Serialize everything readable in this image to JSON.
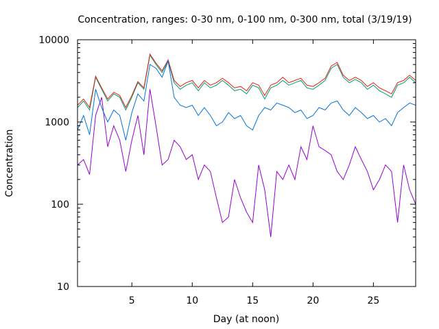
{
  "chart_data": {
    "type": "line",
    "title": "Concentration, ranges: 0-30 nm, 0-100 nm, 0-300 nm, total (3/19/19)",
    "xlabel": "Day (at noon)",
    "ylabel": "Concentration",
    "xlim": [
      0.5,
      28.5
    ],
    "ylim": [
      10,
      10000
    ],
    "yscale": "log",
    "x_ticks": [
      5,
      10,
      15,
      20,
      25
    ],
    "y_ticks": [
      10,
      100,
      1000,
      10000
    ],
    "x_tick_labels": [
      "5",
      "10",
      "15",
      "20",
      "25"
    ],
    "y_tick_labels": [
      "10",
      "100",
      "1000",
      "10000"
    ],
    "grid": false,
    "legend": "none",
    "series": [
      {
        "color": "#9400d3",
        "x": [
          0.5,
          1.0,
          1.5,
          2.0,
          2.5,
          3.0,
          3.5,
          4.0,
          4.5,
          5.0,
          5.5,
          6.0,
          6.5,
          7.0,
          7.5,
          8.0,
          8.5,
          9.0,
          9.5,
          10.0,
          10.5,
          11.0,
          11.5,
          12.0,
          12.5,
          13.0,
          13.5,
          14.0,
          14.5,
          15.0,
          15.5,
          16.0,
          16.5,
          17.0,
          17.5,
          18.0,
          18.5,
          19.0,
          19.5,
          20.0,
          20.5,
          21.0,
          21.5,
          22.0,
          22.5,
          23.0,
          23.5,
          24.0,
          24.5,
          25.0,
          25.5,
          26.0,
          26.5,
          27.0,
          27.5,
          28.0,
          28.5
        ],
        "y": [
          300,
          350,
          230,
          1200,
          2000,
          500,
          900,
          600,
          250,
          600,
          1200,
          400,
          2500,
          900,
          300,
          350,
          600,
          500,
          350,
          400,
          200,
          300,
          250,
          120,
          60,
          70,
          200,
          120,
          80,
          60,
          300,
          150,
          40,
          250,
          200,
          300,
          200,
          500,
          350,
          900,
          500,
          450,
          400,
          250,
          200,
          300,
          500,
          350,
          250,
          150,
          200,
          300,
          250,
          60,
          300,
          150,
          100
        ]
      },
      {
        "color": "#009e73",
        "x": [
          0.5,
          1.0,
          1.5,
          2.0,
          2.5,
          3.0,
          3.5,
          4.0,
          4.5,
          5.0,
          5.5,
          6.0,
          6.5,
          7.0,
          7.5,
          8.0,
          8.5,
          9.0,
          9.5,
          10.0,
          10.5,
          11.0,
          11.5,
          12.0,
          12.5,
          13.0,
          13.5,
          14.0,
          14.5,
          15.0,
          15.5,
          16.0,
          16.5,
          17.0,
          17.5,
          18.0,
          18.5,
          19.0,
          19.5,
          20.0,
          20.5,
          21.0,
          21.5,
          22.0,
          22.5,
          23.0,
          23.5,
          24.0,
          24.5,
          25.0,
          25.5,
          26.0,
          26.5,
          27.0,
          27.5,
          28.0,
          28.5
        ],
        "y": [
          1500,
          1800,
          1400,
          3500,
          2500,
          1800,
          2200,
          2000,
          1400,
          2000,
          3000,
          2500,
          6500,
          5000,
          4000,
          5500,
          3000,
          2500,
          2800,
          3000,
          2400,
          3000,
          2600,
          2800,
          3200,
          2800,
          2400,
          2500,
          2200,
          2800,
          2600,
          1900,
          2600,
          2800,
          3200,
          2800,
          3000,
          3200,
          2600,
          2500,
          2800,
          3200,
          4500,
          5000,
          3500,
          3000,
          3300,
          3000,
          2500,
          2800,
          2400,
          2200,
          2000,
          2800,
          3000,
          3500,
          3000
        ]
      },
      {
        "color": "#e51e10",
        "x": [
          0.5,
          1.0,
          1.5,
          2.0,
          2.5,
          3.0,
          3.5,
          4.0,
          4.5,
          5.0,
          5.5,
          6.0,
          6.5,
          7.0,
          7.5,
          8.0,
          8.5,
          9.0,
          9.5,
          10.0,
          10.5,
          11.0,
          11.5,
          12.0,
          12.5,
          13.0,
          13.5,
          14.0,
          14.5,
          15.0,
          15.5,
          16.0,
          16.5,
          17.0,
          17.5,
          18.0,
          18.5,
          19.0,
          19.5,
          20.0,
          20.5,
          21.0,
          21.5,
          22.0,
          22.5,
          23.0,
          23.5,
          24.0,
          24.5,
          25.0,
          25.5,
          26.0,
          26.5,
          27.0,
          27.5,
          28.0,
          28.5
        ],
        "y": [
          1600,
          1900,
          1500,
          3600,
          2600,
          1900,
          2300,
          2100,
          1500,
          2100,
          3100,
          2600,
          6700,
          5200,
          4200,
          5700,
          3200,
          2700,
          3000,
          3200,
          2600,
          3200,
          2800,
          3000,
          3400,
          3000,
          2600,
          2700,
          2400,
          3000,
          2800,
          2100,
          2800,
          3000,
          3500,
          3000,
          3200,
          3400,
          2800,
          2700,
          3000,
          3400,
          4800,
          5300,
          3700,
          3200,
          3500,
          3200,
          2700,
          3000,
          2600,
          2400,
          2200,
          3000,
          3200,
          3700,
          3200
        ]
      },
      {
        "color": "#0072e0",
        "x": [
          0.5,
          1.0,
          1.5,
          2.0,
          2.5,
          3.0,
          3.5,
          4.0,
          4.5,
          5.0,
          5.5,
          6.0,
          6.5,
          7.0,
          7.5,
          8.0,
          8.5,
          9.0,
          9.5,
          10.0,
          10.5,
          11.0,
          11.5,
          12.0,
          12.5,
          13.0,
          13.5,
          14.0,
          14.5,
          15.0,
          15.5,
          16.0,
          16.5,
          17.0,
          17.5,
          18.0,
          18.5,
          19.0,
          19.5,
          20.0,
          20.5,
          21.0,
          21.5,
          22.0,
          22.5,
          23.0,
          23.5,
          24.0,
          24.5,
          25.0,
          25.5,
          26.0,
          26.5,
          27.0,
          27.5,
          28.0,
          28.5
        ],
        "y": [
          800,
          1200,
          700,
          2500,
          1500,
          1000,
          1400,
          1200,
          600,
          1300,
          2200,
          1800,
          5000,
          4500,
          3500,
          5500,
          2000,
          1600,
          1500,
          1600,
          1200,
          1500,
          1200,
          900,
          1000,
          1300,
          1100,
          1200,
          900,
          800,
          1200,
          1500,
          1400,
          1700,
          1600,
          1500,
          1300,
          1400,
          1100,
          1200,
          1500,
          1400,
          1700,
          1800,
          1400,
          1200,
          1500,
          1300,
          1100,
          1200,
          1000,
          1100,
          900,
          1300,
          1500,
          1700,
          1600
        ]
      }
    ]
  }
}
